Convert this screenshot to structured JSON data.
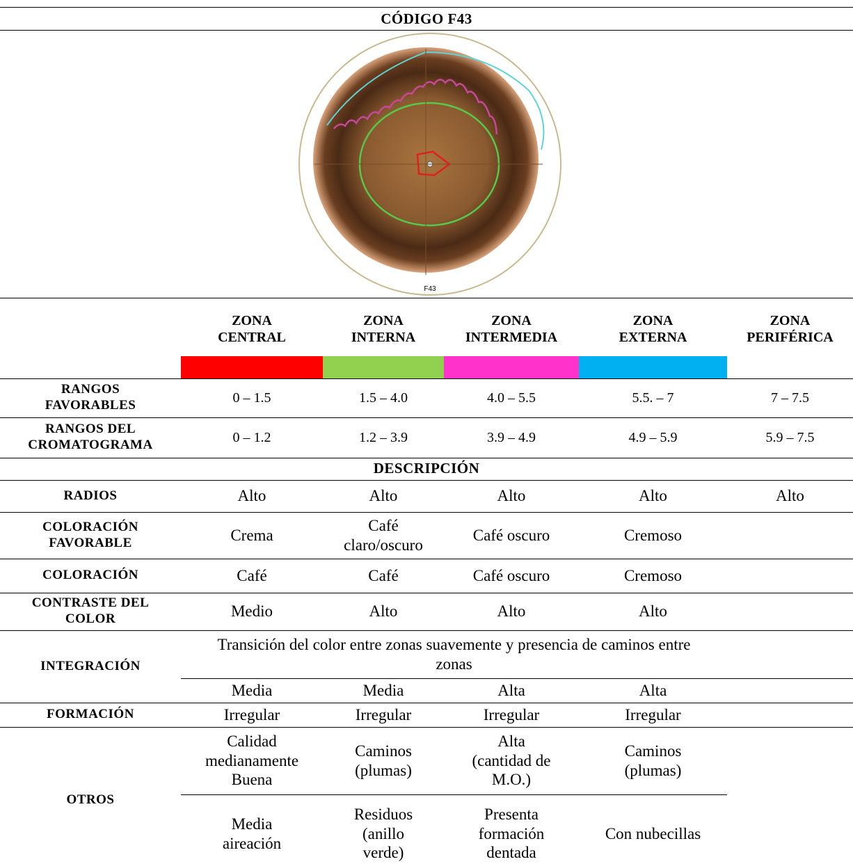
{
  "title": "CÓDIGO F43",
  "image_label": "F43",
  "zones": [
    {
      "name": "ZONA CENTRAL",
      "color": "#ff0000"
    },
    {
      "name": "ZONA INTERNA",
      "color": "#92d050"
    },
    {
      "name": "ZONA INTERMEDIA",
      "color": "#ff33cc"
    },
    {
      "name": "ZONA EXTERNA",
      "color": "#00b0f0"
    },
    {
      "name": "ZONA PERIFÉRICA"
    }
  ],
  "ranges": [
    {
      "label": "RANGOS FAVORABLES",
      "values": [
        "0 – 1.5",
        "1.5 – 4.0",
        "4.0 – 5.5",
        "5.5. – 7",
        "7 – 7.5"
      ]
    },
    {
      "label": "RANGOS DEL CROMATOGRAMA",
      "values": [
        "0 – 1.2",
        "1.2 – 3.9",
        "3.9 – 4.9",
        "4.9 – 5.9",
        "5.9 – 7.5"
      ]
    }
  ],
  "description": {
    "heading": "DESCRIPCIÓN",
    "rows": [
      {
        "label": "RADIOS",
        "values": [
          "Alto",
          "Alto",
          "Alto",
          "Alto",
          "Alto"
        ]
      },
      {
        "label": "COLORACIÓN FAVORABLE",
        "values": [
          "Crema",
          "Café claro/oscuro",
          "Café oscuro",
          "Cremoso"
        ]
      },
      {
        "label": "COLORACIÓN",
        "values": [
          "Café",
          "Café",
          "Café oscuro",
          "Cremoso"
        ]
      },
      {
        "label": "CONTRASTE DEL COLOR",
        "values": [
          "Medio",
          "Alto",
          "Alto",
          "Alto"
        ]
      }
    ],
    "integration": {
      "label": "INTEGRACIÓN",
      "text": "Transición del color entre zonas suavemente y presencia de caminos entre zonas",
      "values": [
        "Media",
        "Media",
        "Alta",
        "Alta"
      ]
    },
    "formation": {
      "label": "FORMACIÓN",
      "values": [
        "Irregular",
        "Irregular",
        "Irregular",
        "Irregular"
      ]
    },
    "others": {
      "label": "OTROS",
      "rows": [
        [
          "Calidad medianamente Buena",
          "Caminos (plumas)",
          "Alta (cantidad de M.O.)",
          "Caminos (plumas)"
        ],
        [
          "Media aireación",
          "Residuos (anillo verde)",
          "Presenta formación dentada",
          "Con nubecillas"
        ]
      ]
    }
  }
}
